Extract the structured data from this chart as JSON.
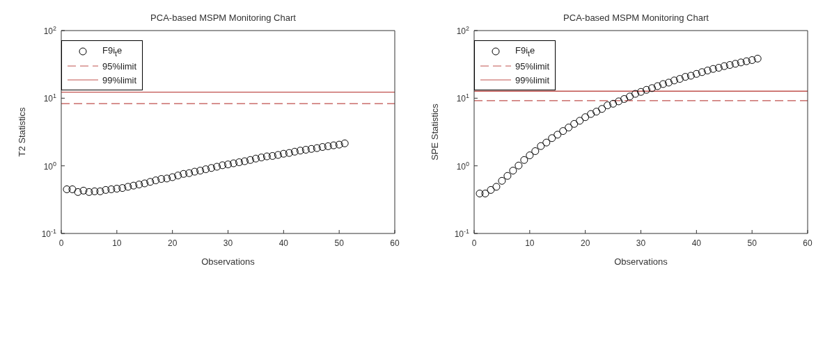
{
  "chart_data": [
    {
      "type": "scatter",
      "title": "PCA-based MSPM Monitoring Chart",
      "xlabel": "Observations",
      "ylabel": "T2 Statistics",
      "log": "y",
      "marker": "circle",
      "legend": "top left",
      "xlim": [
        0,
        60
      ],
      "xticks": [
        0,
        10,
        20,
        30,
        40,
        50,
        60
      ],
      "ylim": [
        0.1,
        100
      ],
      "yticks": [
        {
          "value": 0.1,
          "label": "10$^{-1}$"
        },
        {
          "value": 1,
          "label": "10$^{0}$"
        },
        {
          "value": 10,
          "label": "10$^{1}$"
        },
        {
          "value": 100,
          "label": "10$^{2}$"
        }
      ],
      "x": [
        1,
        2,
        3,
        4,
        5,
        6,
        7,
        8,
        9,
        10,
        11,
        12,
        13,
        14,
        15,
        16,
        17,
        18,
        19,
        20,
        21,
        22,
        23,
        24,
        25,
        26,
        27,
        28,
        29,
        30,
        31,
        32,
        33,
        34,
        35,
        36,
        37,
        38,
        39,
        40,
        41,
        42,
        43,
        44,
        45,
        46,
        47,
        48,
        49,
        50,
        51
      ],
      "series": [
        {
          "name": "F9i$_{t}$e",
          "color": "#000000",
          "values": [
            0.45,
            0.45,
            0.41,
            0.43,
            0.41,
            0.42,
            0.42,
            0.44,
            0.45,
            0.46,
            0.47,
            0.49,
            0.51,
            0.53,
            0.55,
            0.58,
            0.61,
            0.64,
            0.65,
            0.68,
            0.72,
            0.76,
            0.78,
            0.82,
            0.85,
            0.89,
            0.93,
            0.97,
            1.02,
            1.05,
            1.09,
            1.13,
            1.17,
            1.22,
            1.28,
            1.33,
            1.38,
            1.4,
            1.45,
            1.51,
            1.55,
            1.62,
            1.68,
            1.73,
            1.78,
            1.83,
            1.9,
            1.95,
            2.01,
            2.06,
            2.15
          ]
        }
      ],
      "ref_lines": [
        {
          "axis": "y",
          "value": 8.3,
          "label": "95%limit",
          "color": "#c0504d",
          "line_style": "dashed"
        },
        {
          "axis": "y",
          "value": 12.3,
          "label": "99%limit",
          "color": "#c0504d",
          "line_style": "solid"
        }
      ]
    },
    {
      "type": "scatter",
      "title": "PCA-based MSPM Monitoring Chart",
      "xlabel": "Observations",
      "ylabel": "SPE Statistics",
      "log": "y",
      "marker": "circle",
      "legend": "top left",
      "xlim": [
        0,
        60
      ],
      "xticks": [
        0,
        10,
        20,
        30,
        40,
        50,
        60
      ],
      "ylim": [
        0.1,
        100
      ],
      "yticks": [
        {
          "value": 0.1,
          "label": "10$^{-1}$"
        },
        {
          "value": 1,
          "label": "10$^{0}$"
        },
        {
          "value": 10,
          "label": "10$^{1}$"
        },
        {
          "value": 100,
          "label": "10$^{2}$"
        }
      ],
      "x": [
        1,
        2,
        3,
        4,
        5,
        6,
        7,
        8,
        9,
        10,
        11,
        12,
        13,
        14,
        15,
        16,
        17,
        18,
        19,
        20,
        21,
        22,
        23,
        24,
        25,
        26,
        27,
        28,
        29,
        30,
        31,
        32,
        33,
        34,
        35,
        36,
        37,
        38,
        39,
        40,
        41,
        42,
        43,
        44,
        45,
        46,
        47,
        48,
        49,
        50,
        51
      ],
      "series": [
        {
          "name": "F9i$_{t}$e",
          "color": "#000000",
          "values": [
            0.39,
            0.39,
            0.44,
            0.49,
            0.6,
            0.71,
            0.85,
            1.01,
            1.22,
            1.43,
            1.65,
            1.96,
            2.21,
            2.57,
            2.89,
            3.27,
            3.69,
            4.17,
            4.64,
            5.24,
            5.84,
            6.33,
            6.95,
            7.85,
            8.28,
            8.98,
            9.73,
            10.6,
            11.6,
            12.4,
            13.3,
            14.1,
            15.1,
            16.2,
            17.0,
            18.3,
            19.3,
            20.7,
            21.5,
            22.9,
            24.3,
            25.7,
            27.1,
            28.2,
            29.8,
            31.0,
            32.3,
            33.8,
            35.2,
            36.6,
            38.5
          ]
        }
      ],
      "ref_lines": [
        {
          "axis": "y",
          "value": 9.2,
          "label": "95%limit",
          "color": "#c0504d",
          "line_style": "dashed"
        },
        {
          "axis": "y",
          "value": 12.7,
          "label": "99%limit",
          "color": "#c0504d",
          "line_style": "solid"
        }
      ]
    }
  ]
}
